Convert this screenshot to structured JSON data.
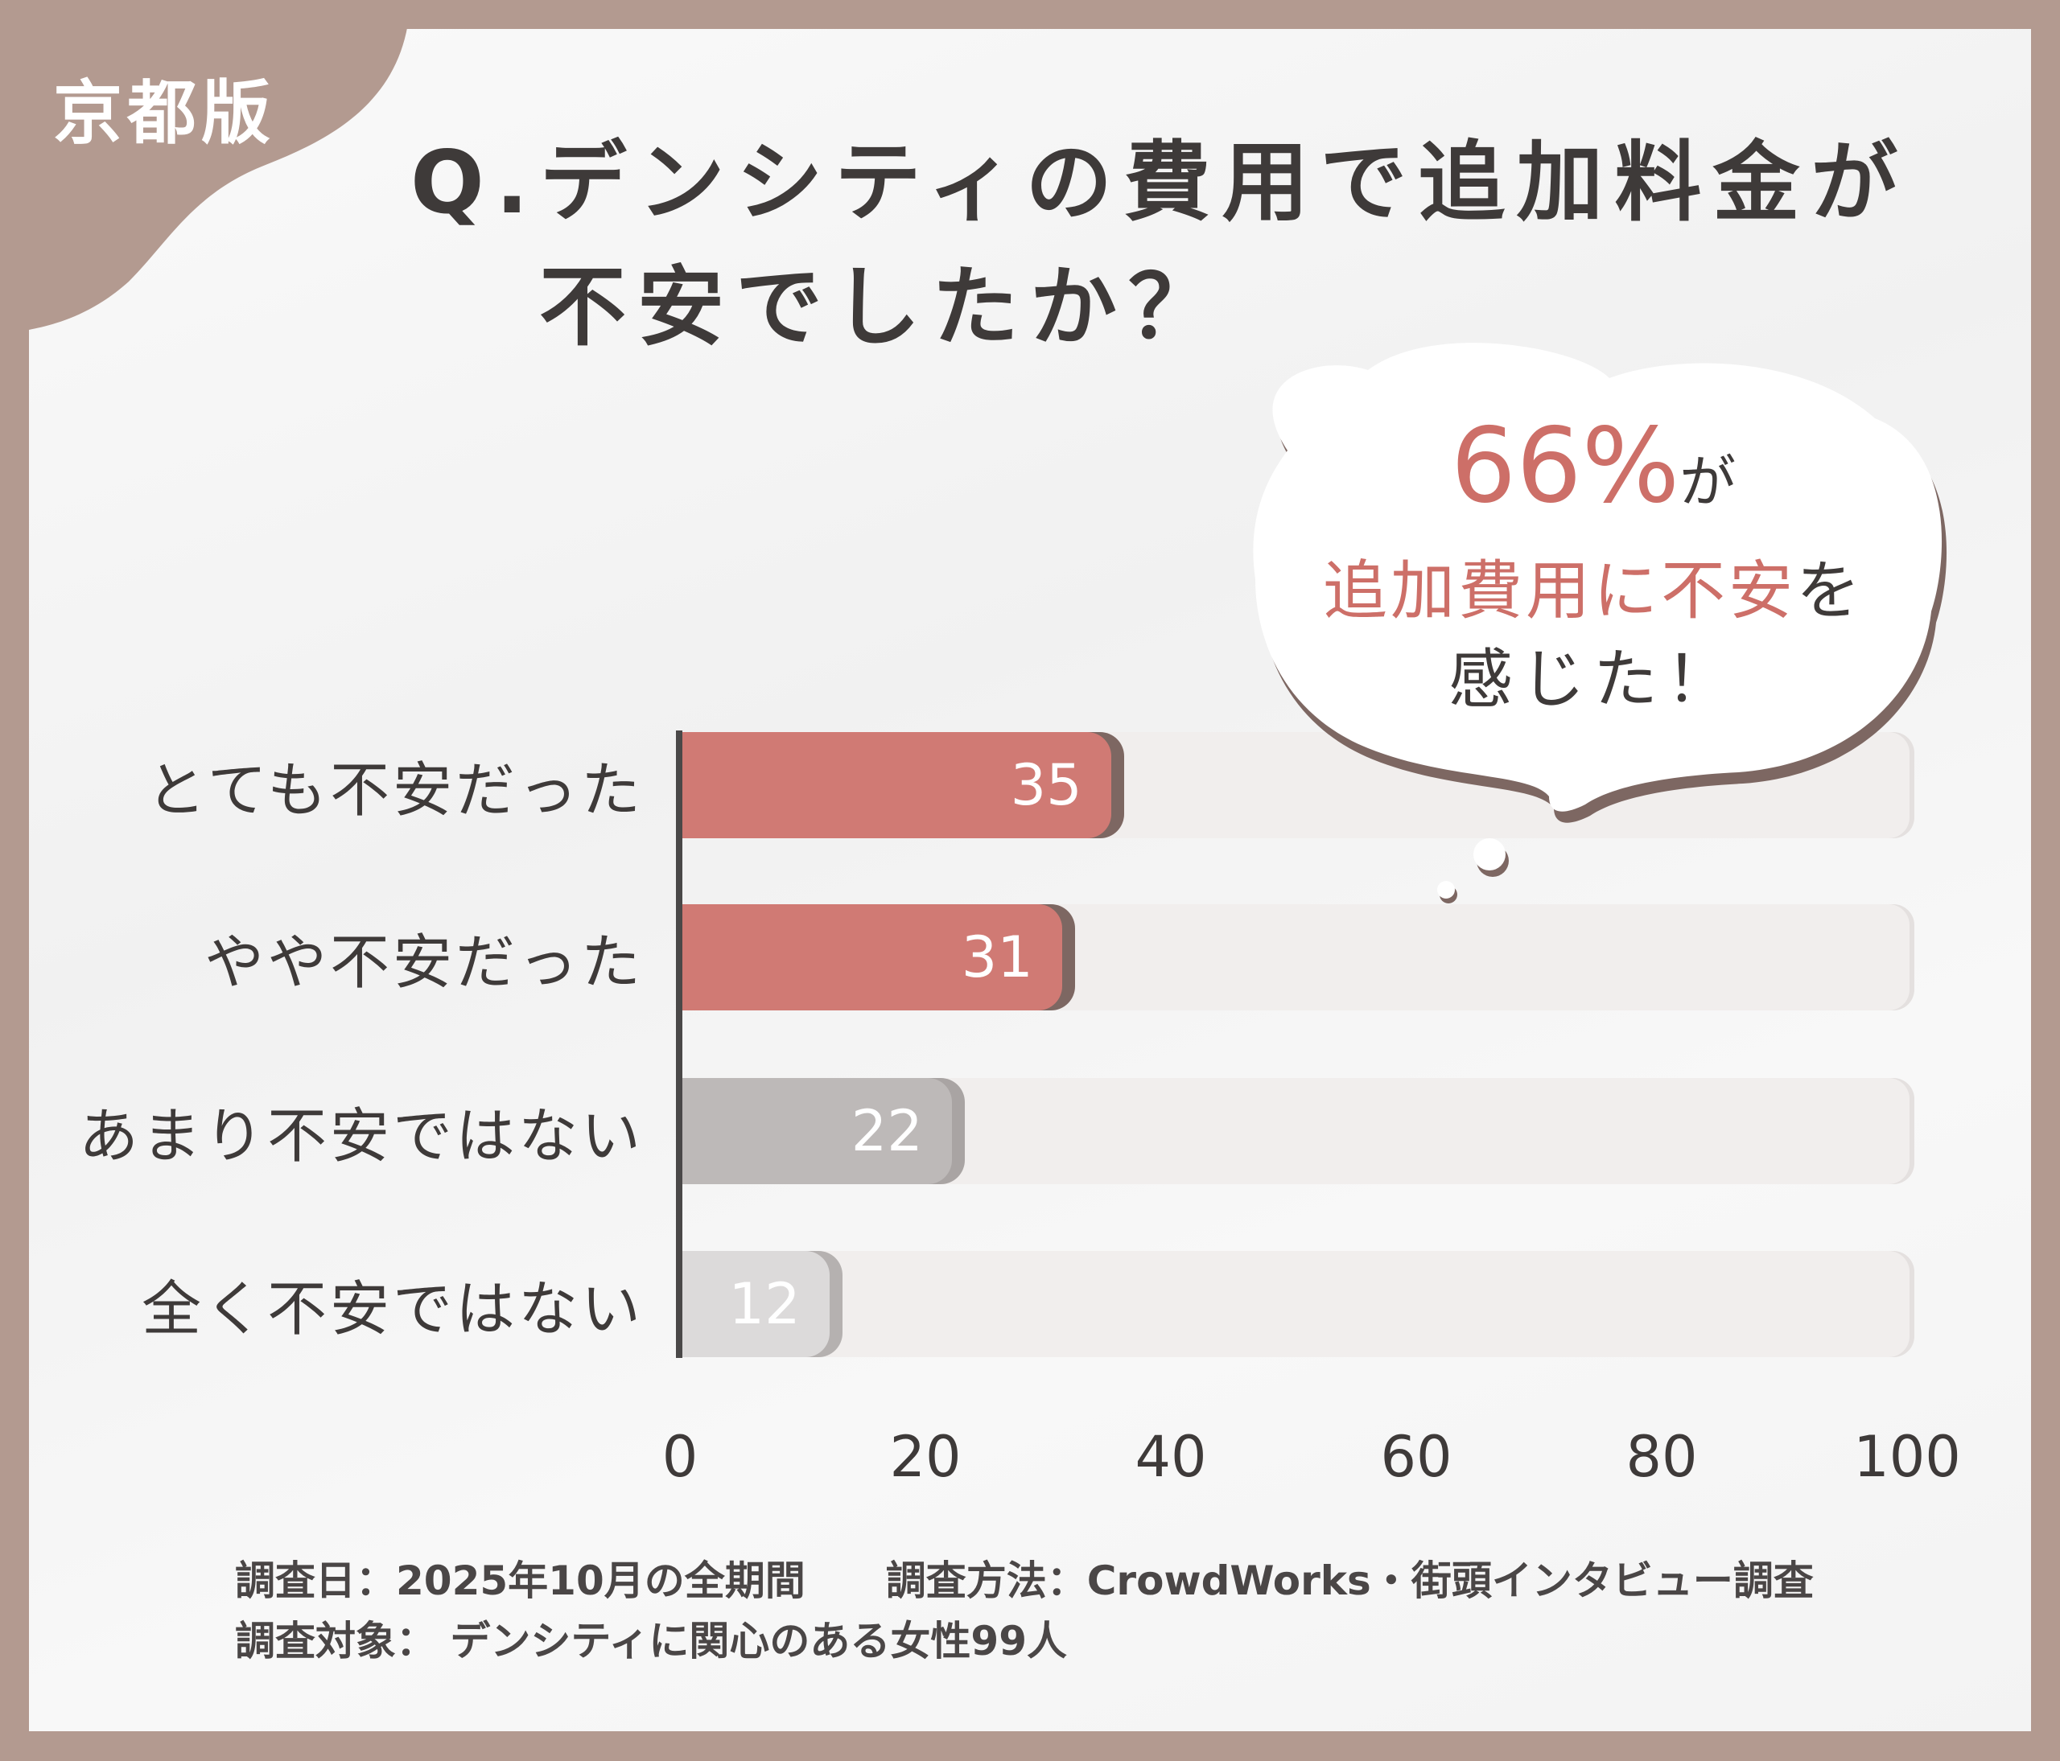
{
  "badge": "京都版",
  "title": {
    "line1": "Q.デンシティの費用で追加料金が",
    "line2": "不安でしたか？"
  },
  "callout": {
    "percent": "66%",
    "ga": "が",
    "highlight": "追加費用に不安",
    "wo": "を",
    "line3": "感じた！"
  },
  "colors": {
    "frame": "#b39a90",
    "accent": "#cd6f68",
    "bar_red": "#d07a74",
    "bar_gray": "#bdb9b8",
    "bar_light": "#dcdada",
    "track": "#f1eeed"
  },
  "chart_data": {
    "type": "bar",
    "orientation": "horizontal",
    "categories": [
      "とても不安だった",
      "やや不安だった",
      "あまり不安ではない",
      "全く不安ではない"
    ],
    "values": [
      35,
      31,
      22,
      12
    ],
    "bar_colors": [
      "#d07a74",
      "#d07a74",
      "#bdb9b8",
      "#dcdada"
    ],
    "xlim": [
      0,
      100
    ],
    "xticks": [
      "0",
      "20",
      "40",
      "60",
      "80",
      "100"
    ],
    "grid": false
  },
  "footer": {
    "line1": "調査日：2025年10月の全期間　　調査方法：CrowdWorks・街頭インタビュー調査",
    "line2": "調査対象： デンシティに関心のある女性99人"
  }
}
